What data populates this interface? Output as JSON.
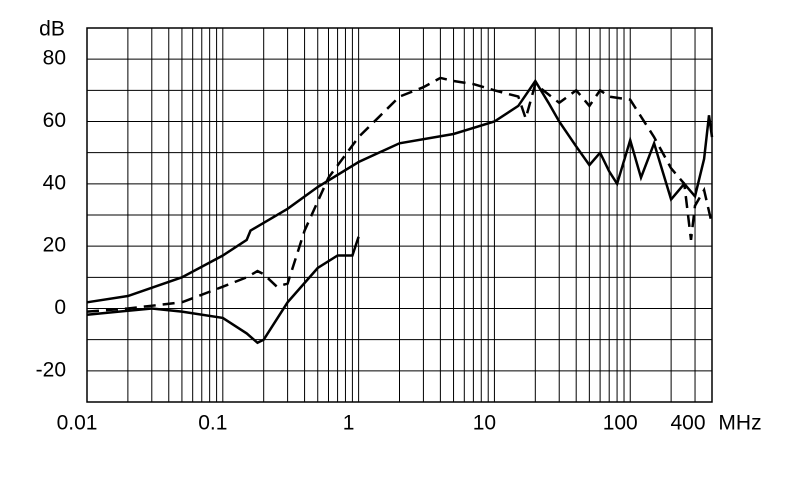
{
  "chart_data": {
    "type": "line",
    "y_unit": "dB",
    "x_unit": "MHz",
    "log_x": true,
    "grid": true,
    "xlim": [
      0.01,
      400
    ],
    "ylim": [
      -30,
      90
    ],
    "xticks": [
      0.01,
      0.1,
      1,
      10,
      100,
      400
    ],
    "x_minor_ticks": [
      0.02,
      0.03,
      0.04,
      0.05,
      0.06,
      0.07,
      0.08,
      0.09,
      0.2,
      0.3,
      0.4,
      0.5,
      0.6,
      0.7,
      0.8,
      0.9,
      2,
      3,
      4,
      5,
      6,
      7,
      8,
      9,
      20,
      30,
      40,
      50,
      60,
      70,
      80,
      90,
      200,
      300
    ],
    "yticks": [
      -20,
      0,
      20,
      40,
      60,
      80
    ],
    "y_minor_ticks": [
      -30,
      -10,
      10,
      30,
      50,
      70,
      90
    ],
    "series": [
      {
        "color": "#000000",
        "dashed": false,
        "x": [
          0.01,
          0.02,
          0.05,
          0.1,
          0.15,
          0.16,
          0.3,
          0.5,
          1,
          2,
          5,
          10,
          15,
          20,
          25,
          30,
          40,
          50,
          60,
          70,
          80,
          100,
          120,
          150,
          200,
          250,
          300,
          350,
          380,
          400
        ],
        "values": [
          2,
          4,
          10,
          17,
          22,
          25,
          32,
          39,
          47,
          53,
          56,
          60,
          65,
          73,
          66,
          60,
          52,
          46,
          50,
          44,
          40,
          54,
          42,
          53,
          35,
          40,
          36,
          48,
          62,
          55
        ]
      },
      {
        "color": "#000000",
        "dashed": false,
        "x": [
          0.01,
          0.03,
          0.05,
          0.1,
          0.15,
          0.18,
          0.2,
          0.3,
          0.5,
          0.7,
          0.9,
          1
        ],
        "values": [
          -2,
          0,
          -1,
          -3,
          -8,
          -11,
          -10,
          2,
          13,
          17,
          17,
          23
        ]
      },
      {
        "color": "#000000",
        "dashed": true,
        "x": [
          0.01,
          0.02,
          0.05,
          0.1,
          0.15,
          0.18,
          0.2,
          0.25,
          0.3,
          0.4,
          0.6,
          1,
          2,
          3,
          4,
          5,
          7,
          10,
          15,
          17,
          20,
          30,
          40,
          50,
          60,
          70,
          100,
          150,
          200,
          250,
          280,
          300,
          350,
          400
        ],
        "values": [
          -1,
          0,
          2,
          7,
          10,
          12,
          11,
          7,
          8,
          25,
          42,
          55,
          68,
          71,
          74,
          73,
          72,
          70,
          68,
          61,
          72,
          66,
          70,
          65,
          70,
          68,
          67,
          55,
          45,
          40,
          22,
          33,
          38,
          27
        ]
      }
    ]
  }
}
